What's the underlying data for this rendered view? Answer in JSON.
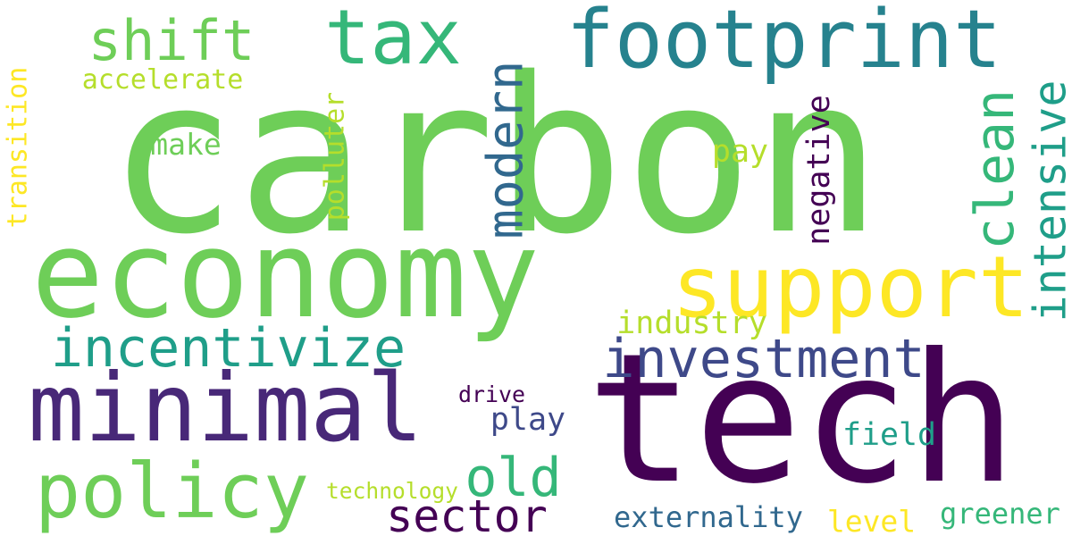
{
  "palette": {
    "purple_dark": "#440154",
    "indigo": "#482878",
    "slate_blue": "#3e4989",
    "steel_blue": "#31688e",
    "teal_dark": "#26828e",
    "teal": "#1f9e89",
    "green_teal": "#35b779",
    "green": "#6ece58",
    "lime": "#b5de2b",
    "yellow": "#fde725"
  },
  "words": [
    {
      "text": "carbon",
      "weight": 1.0,
      "color": "green"
    },
    {
      "text": "tech",
      "weight": 0.9,
      "color": "purple_dark"
    },
    {
      "text": "economy",
      "weight": 0.6,
      "color": "green"
    },
    {
      "text": "footprint",
      "weight": 0.5,
      "color": "teal_dark"
    },
    {
      "text": "minimal",
      "weight": 0.5,
      "color": "indigo"
    },
    {
      "text": "tax",
      "weight": 0.5,
      "color": "green_teal"
    },
    {
      "text": "policy",
      "weight": 0.45,
      "color": "green"
    },
    {
      "text": "support",
      "weight": 0.45,
      "color": "yellow"
    },
    {
      "text": "incentivize",
      "weight": 0.35,
      "color": "teal"
    },
    {
      "text": "investment",
      "weight": 0.35,
      "color": "slate_blue"
    },
    {
      "text": "intensive",
      "weight": 0.35,
      "color": "teal"
    },
    {
      "text": "shift",
      "weight": 0.3,
      "color": "green"
    },
    {
      "text": "clean",
      "weight": 0.3,
      "color": "green_teal"
    },
    {
      "text": "modern",
      "weight": 0.3,
      "color": "steel_blue"
    },
    {
      "text": "old",
      "weight": 0.3,
      "color": "green_teal"
    },
    {
      "text": "sector",
      "weight": 0.28,
      "color": "purple_dark"
    },
    {
      "text": "polluter",
      "weight": 0.15,
      "color": "lime"
    },
    {
      "text": "negative",
      "weight": 0.15,
      "color": "purple_dark"
    },
    {
      "text": "transition",
      "weight": 0.15,
      "color": "yellow"
    },
    {
      "text": "accelerate",
      "weight": 0.15,
      "color": "lime"
    },
    {
      "text": "make",
      "weight": 0.15,
      "color": "green"
    },
    {
      "text": "pay",
      "weight": 0.15,
      "color": "lime"
    },
    {
      "text": "industry",
      "weight": 0.15,
      "color": "lime"
    },
    {
      "text": "play",
      "weight": 0.15,
      "color": "slate_blue"
    },
    {
      "text": "field",
      "weight": 0.15,
      "color": "teal"
    },
    {
      "text": "drive",
      "weight": 0.1,
      "color": "purple_dark"
    },
    {
      "text": "externality",
      "weight": 0.15,
      "color": "steel_blue"
    },
    {
      "text": "level",
      "weight": 0.15,
      "color": "yellow"
    },
    {
      "text": "greener",
      "weight": 0.15,
      "color": "green_teal"
    },
    {
      "text": "technology",
      "weight": 0.1,
      "color": "lime"
    }
  ]
}
